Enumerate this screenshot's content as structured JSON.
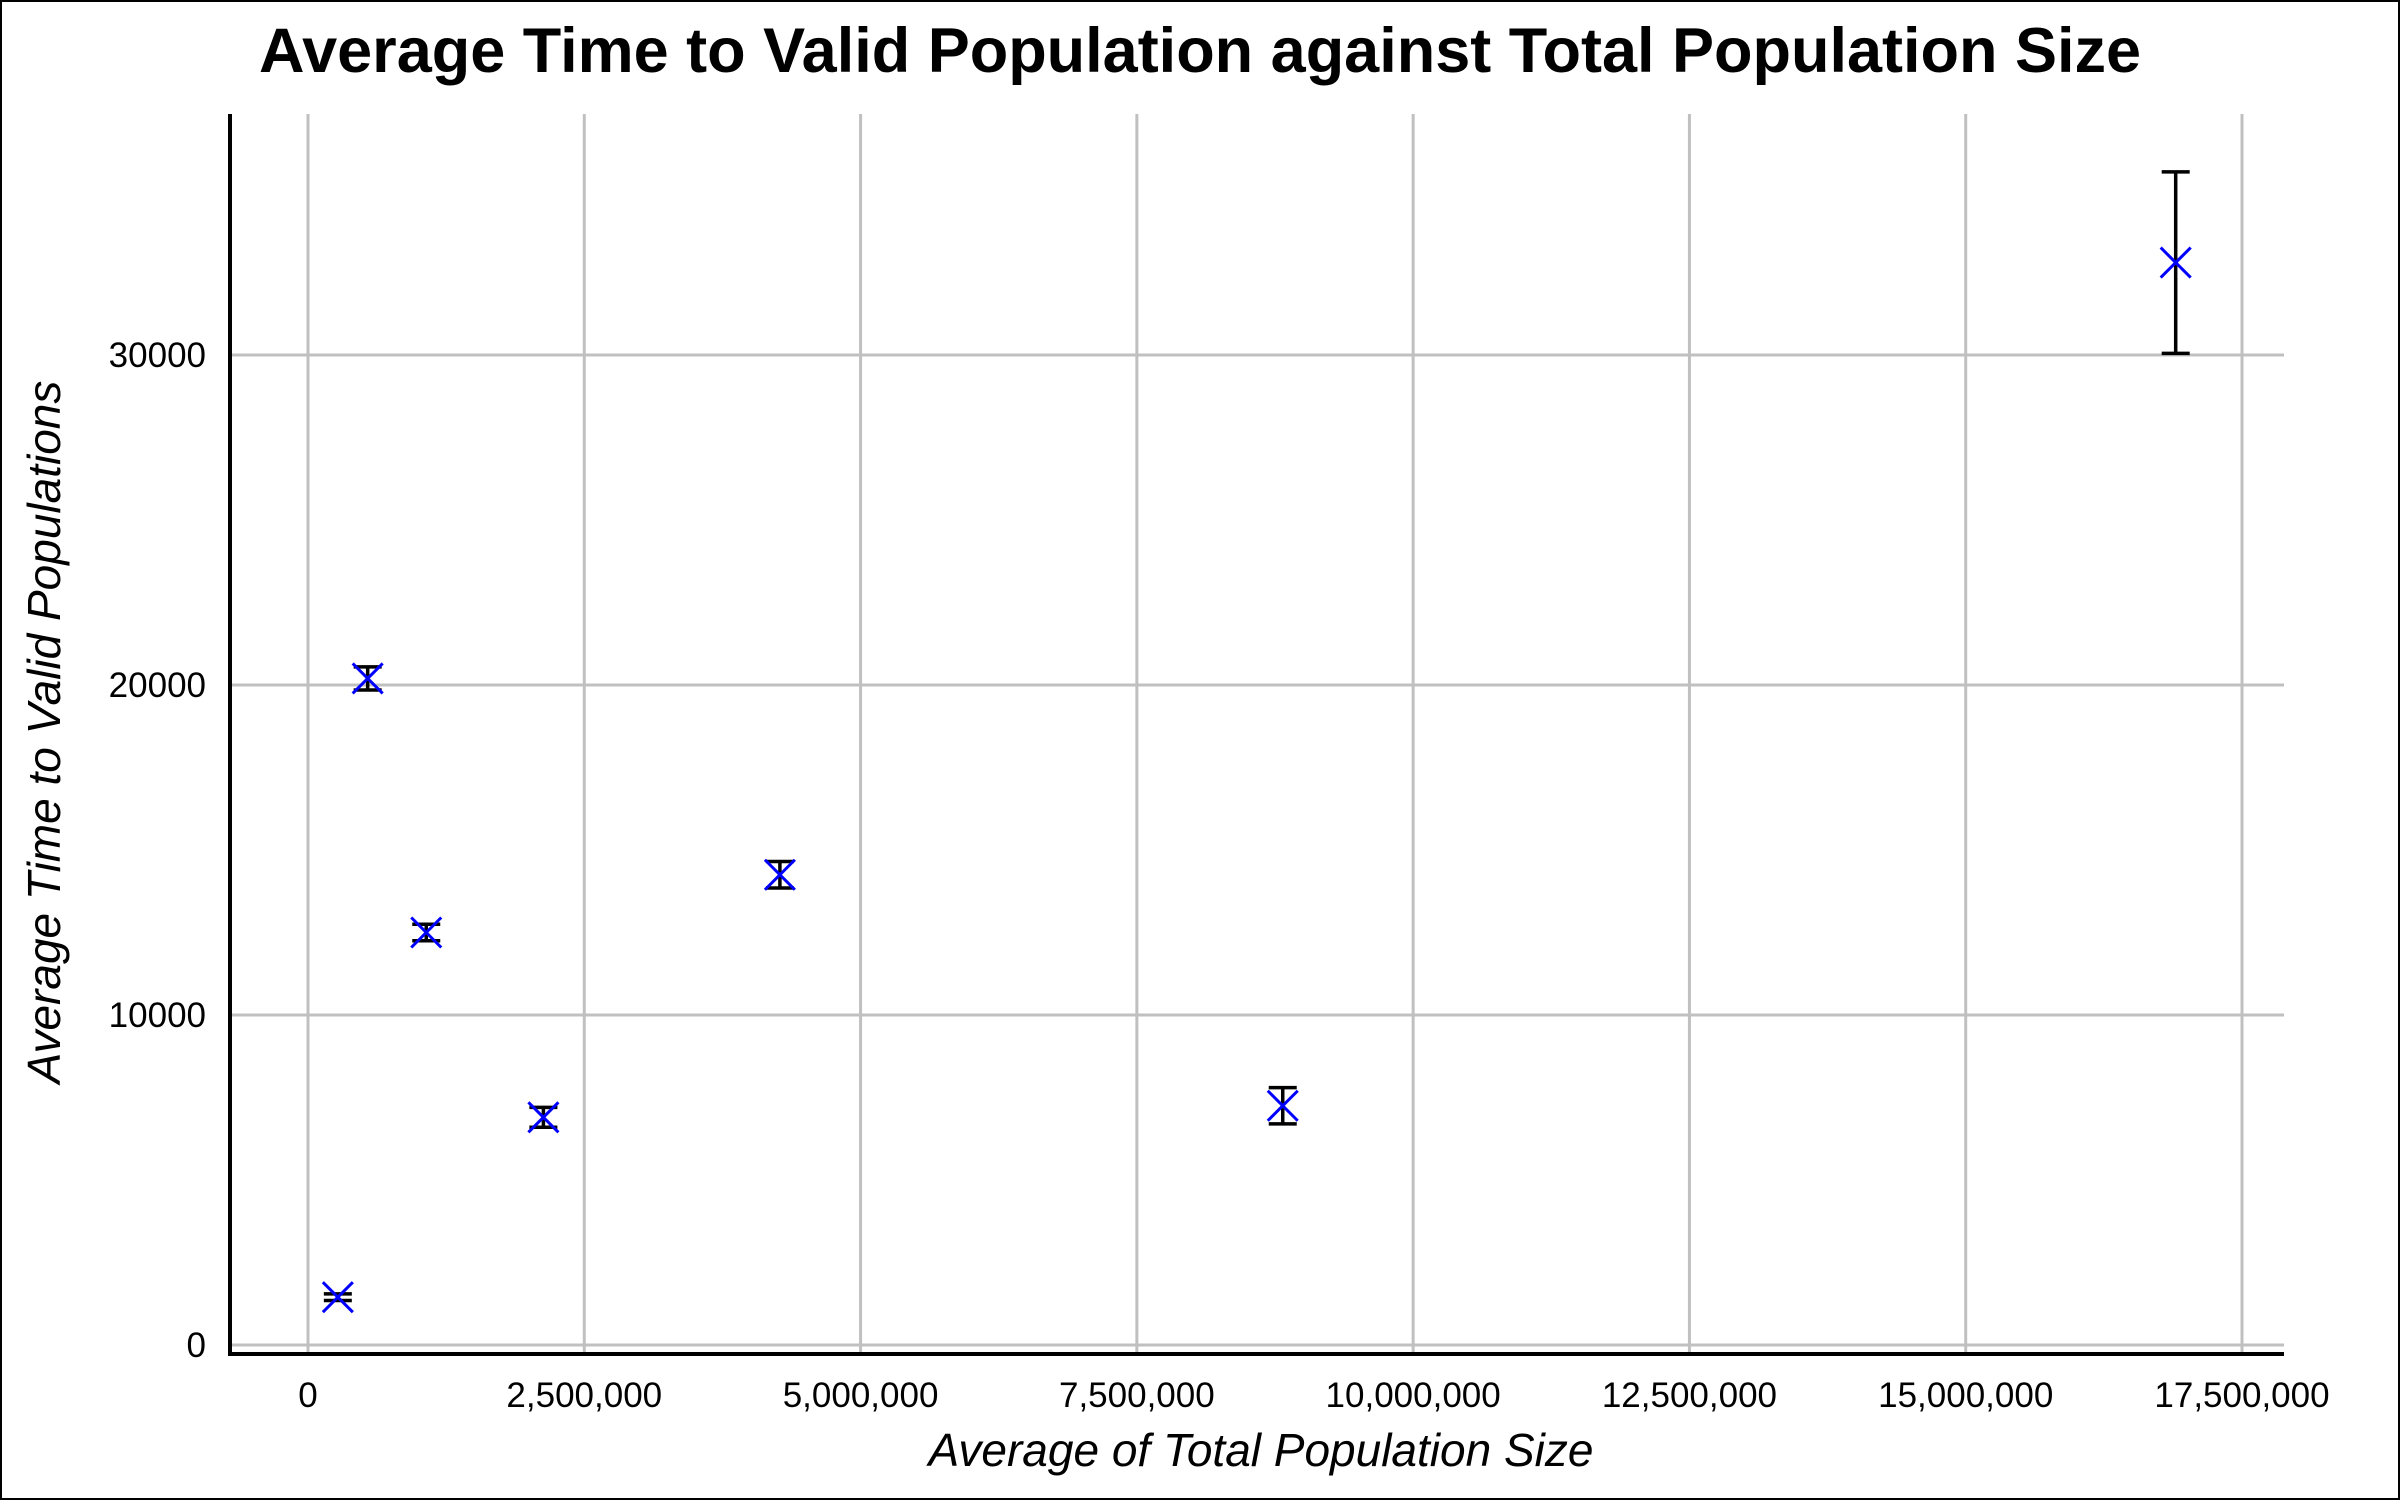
{
  "chart_data": {
    "type": "scatter",
    "title": "Average Time to Valid Population against Total Population Size",
    "xlabel": "Average of Total Population Size",
    "ylabel": "Average Time to Valid Populations",
    "xlim": [
      -700000,
      17900000
    ],
    "ylim": [
      -250000,
      37000
    ],
    "grid": true,
    "marker": "x",
    "colors": {
      "marker": "#0000ff",
      "errorbar": "#000000",
      "grid": "#c0c0c0",
      "axis": "#000000"
    },
    "xticks": [
      {
        "value": 0,
        "label": "0"
      },
      {
        "value": 2500000,
        "label": "2,500,000"
      },
      {
        "value": 5000000,
        "label": "5,000,000"
      },
      {
        "value": 7500000,
        "label": "7,500,000"
      },
      {
        "value": 10000000,
        "label": "10,000,000"
      },
      {
        "value": 12500000,
        "label": "12,500,000"
      },
      {
        "value": 15000000,
        "label": "15,000,000"
      },
      {
        "value": 17500000,
        "label": "17,500,000"
      }
    ],
    "yticks": [
      {
        "value": 0,
        "label": "0"
      },
      {
        "value": 10000,
        "label": "10000"
      },
      {
        "value": 20000,
        "label": "20000"
      },
      {
        "value": 30000,
        "label": "30000"
      }
    ],
    "points": [
      {
        "x": 270000,
        "y": 1450,
        "err": 100
      },
      {
        "x": 540000,
        "y": 20200,
        "err": 350
      },
      {
        "x": 1070000,
        "y": 12500,
        "err": 250
      },
      {
        "x": 2130000,
        "y": 6900,
        "err": 300
      },
      {
        "x": 4270000,
        "y": 14250,
        "err": 400
      },
      {
        "x": 8820000,
        "y": 7250,
        "err": 550
      },
      {
        "x": 16900000,
        "y": 32800,
        "err": 2750
      }
    ]
  }
}
